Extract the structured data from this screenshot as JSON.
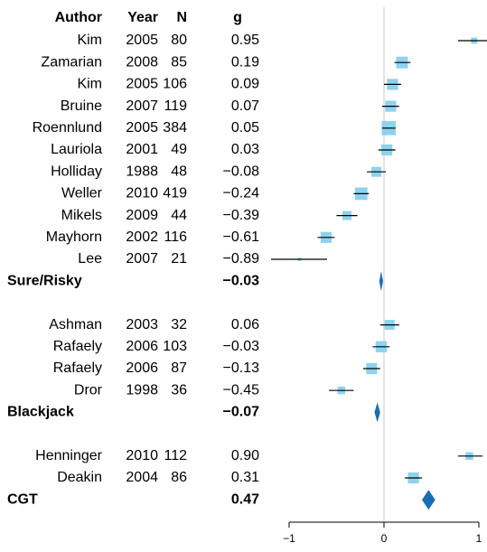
{
  "chart_data": {
    "type": "forest",
    "columns": [
      "Author",
      "Year",
      "N",
      "g"
    ],
    "xlim": [
      -1.25,
      1.1
    ],
    "xticks": [
      {
        "value": -1,
        "label": "−1"
      },
      0,
      1
    ],
    "box_color": "#8dd3ef",
    "summary_color": "#1c6db3",
    "groups": [
      {
        "studies": [
          {
            "author": "Kim",
            "year": "2005",
            "n": "80",
            "g": 0.95,
            "g_label": "0.95",
            "ci": [
              0.78,
              1.1
            ]
          },
          {
            "author": "Zamarian",
            "year": "2008",
            "n": "85",
            "g": 0.19,
            "g_label": "0.19",
            "ci": [
              0.11,
              0.28
            ]
          },
          {
            "author": "Kim",
            "year": "2005",
            "n": "106",
            "g": 0.09,
            "g_label": "0.09",
            "ci": [
              0.0,
              0.18
            ]
          },
          {
            "author": "Bruine",
            "year": "2007",
            "n": "119",
            "g": 0.07,
            "g_label": "0.07",
            "ci": [
              -0.02,
              0.16
            ]
          },
          {
            "author": "Roennlund",
            "year": "2005",
            "n": "384",
            "g": 0.05,
            "g_label": "0.05",
            "ci": [
              -0.02,
              0.12
            ]
          },
          {
            "author": "Lauriola",
            "year": "2001",
            "n": "49",
            "g": 0.03,
            "g_label": "0.03",
            "ci": [
              -0.06,
              0.12
            ]
          },
          {
            "author": "Holliday",
            "year": "1988",
            "n": "48",
            "g": -0.08,
            "g_label": "−0.08",
            "ci": [
              -0.18,
              0.02
            ]
          },
          {
            "author": "Weller",
            "year": "2010",
            "n": "419",
            "g": -0.24,
            "g_label": "−0.24",
            "ci": [
              -0.32,
              -0.16
            ]
          },
          {
            "author": "Mikels",
            "year": "2009",
            "n": "44",
            "g": -0.39,
            "g_label": "−0.39",
            "ci": [
              -0.5,
              -0.28
            ]
          },
          {
            "author": "Mayhorn",
            "year": "2002",
            "n": "116",
            "g": -0.61,
            "g_label": "−0.61",
            "ci": [
              -0.7,
              -0.52
            ]
          },
          {
            "author": "Lee",
            "year": "2007",
            "n": "21",
            "g": -0.89,
            "g_label": "−0.89",
            "ci": [
              -1.19,
              -0.6
            ]
          }
        ],
        "summary": {
          "label": "Sure/Risky",
          "g": -0.03,
          "g_label": "−0.03",
          "ci": [
            -0.05,
            -0.01
          ]
        }
      },
      {
        "studies": [
          {
            "author": "Ashman",
            "year": "2003",
            "n": "32",
            "g": 0.06,
            "g_label": "0.06",
            "ci": [
              -0.04,
              0.16
            ]
          },
          {
            "author": "Rafaely",
            "year": "2006",
            "n": "103",
            "g": -0.03,
            "g_label": "−0.03",
            "ci": [
              -0.12,
              0.06
            ]
          },
          {
            "author": "Rafaely",
            "year": "2006",
            "n": "87",
            "g": -0.13,
            "g_label": "−0.13",
            "ci": [
              -0.22,
              -0.04
            ]
          },
          {
            "author": "Dror",
            "year": "1998",
            "n": "36",
            "g": -0.45,
            "g_label": "−0.45",
            "ci": [
              -0.58,
              -0.32
            ]
          }
        ],
        "summary": {
          "label": "Blackjack",
          "g": -0.07,
          "g_label": "−0.07",
          "ci": [
            -0.1,
            -0.04
          ]
        }
      },
      {
        "studies": [
          {
            "author": "Henninger",
            "year": "2010",
            "n": "112",
            "g": 0.9,
            "g_label": "0.90",
            "ci": [
              0.78,
              1.04
            ]
          },
          {
            "author": "Deakin",
            "year": "2004",
            "n": "86",
            "g": 0.31,
            "g_label": "0.31",
            "ci": [
              0.22,
              0.4
            ]
          }
        ],
        "summary": {
          "label": "CGT",
          "g": 0.47,
          "g_label": "0.47",
          "ci": [
            0.4,
            0.54
          ]
        }
      }
    ]
  }
}
